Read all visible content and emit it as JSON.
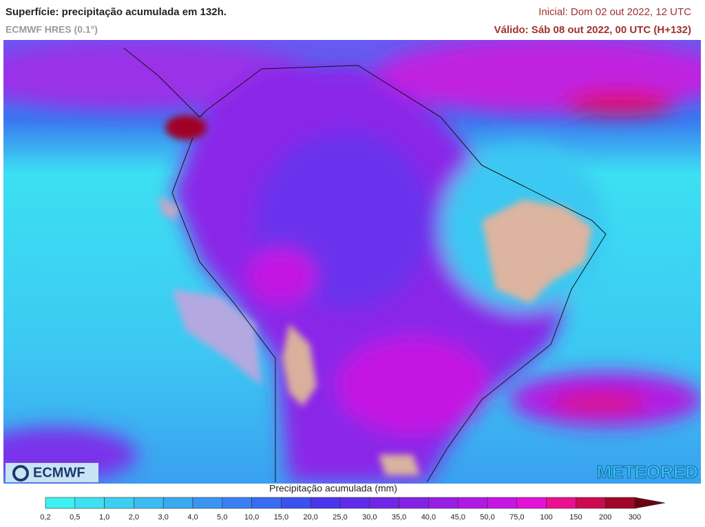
{
  "header": {
    "title": "Superfície: precipitação acumulada em 132h.",
    "model": "ECMWF HRES (0.1°)",
    "initial": "Inicial: Dom 02 out 2022, 12 UTC",
    "valid": "Válido: Sáb 08 out 2022, 00 UTC (H+132)"
  },
  "logos": {
    "left": "ECMWF",
    "right": "METEORED"
  },
  "legend": {
    "title": "Precipitação acumulada (mm)",
    "labels": [
      "0,2",
      "0,5",
      "1,0",
      "2,0",
      "3,0",
      "4,0",
      "5,0",
      "10,0",
      "15,0",
      "20,0",
      "25,0",
      "30,0",
      "35,0",
      "40,0",
      "45,0",
      "50,0",
      "75,0",
      "100",
      "150",
      "200",
      "300"
    ],
    "colors": [
      "#3ff0f0",
      "#3ee0f2",
      "#3dcff2",
      "#3cbcf2",
      "#3ba8f2",
      "#3a94f2",
      "#3a80f2",
      "#3a6cf2",
      "#3a50f0",
      "#4a34ee",
      "#5e2cea",
      "#7026e6",
      "#8422e4",
      "#981ee4",
      "#ae1ae4",
      "#c616e2",
      "#e212d8",
      "#ea1090",
      "#cc0a50",
      "#a00628"
    ],
    "extend_color": "#6a0010"
  }
}
